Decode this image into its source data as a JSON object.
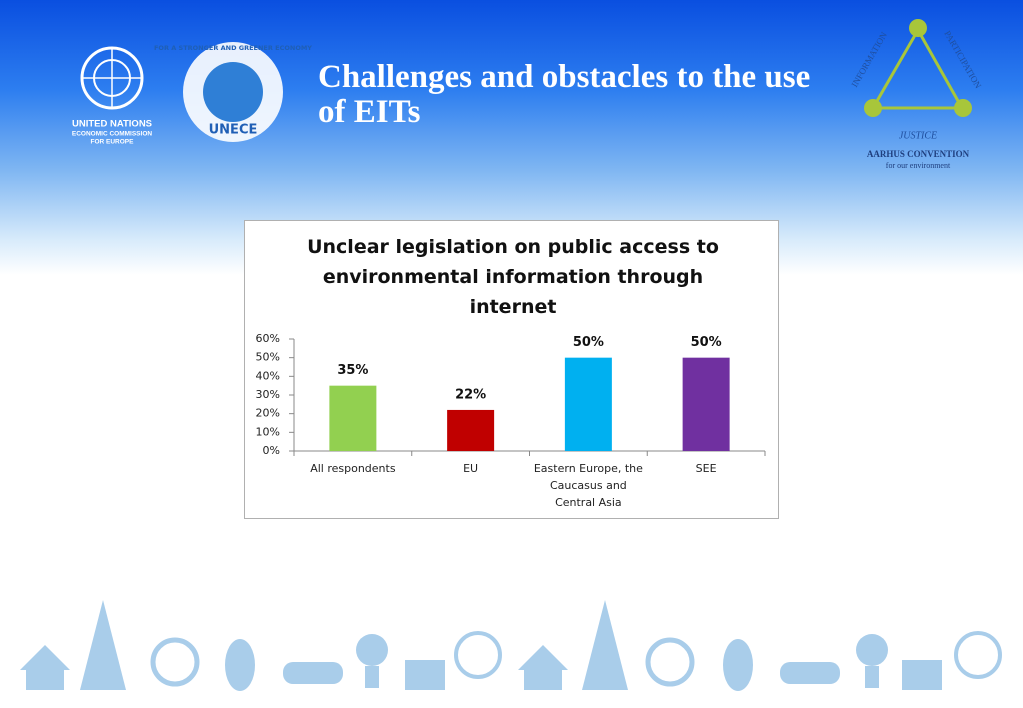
{
  "header": {
    "title": "Challenges and obstacles to the use of EITs"
  },
  "logos": {
    "un": [
      "UNITED NATIONS",
      "ECONOMIC COMMISSION",
      "FOR EUROPE"
    ],
    "unece": {
      "ring": "FOR A STRONGER AND GREENER ECONOMY",
      "name": "UNECE"
    },
    "aarhus": {
      "top_left": "INFORMATION",
      "top_right": "PARTICIPATION",
      "bottom": "JUSTICE",
      "name": "AARHUS CONVENTION",
      "tagline": "for our environment"
    }
  },
  "chart_data": {
    "type": "bar",
    "title": "Unclear legislation on public access to environmental information through internet",
    "categories": [
      "All respondents",
      "EU",
      "Eastern Europe, the Caucasus and Central Asia",
      "SEE"
    ],
    "values": [
      35,
      22,
      50,
      50
    ],
    "value_labels": [
      "35%",
      "22%",
      "50%",
      "50%"
    ],
    "colors": [
      "#92d050",
      "#c00000",
      "#00b0f0",
      "#7030a0"
    ],
    "ylim": [
      0,
      60
    ],
    "yticks": [
      {
        "value": 0,
        "label": "0%"
      },
      {
        "value": 10,
        "label": "10%"
      },
      {
        "value": 20,
        "label": "20%"
      },
      {
        "value": 30,
        "label": "30%"
      },
      {
        "value": 40,
        "label": "40%"
      },
      {
        "value": 50,
        "label": "50%"
      },
      {
        "value": 60,
        "label": "60%"
      }
    ],
    "grid": false
  }
}
